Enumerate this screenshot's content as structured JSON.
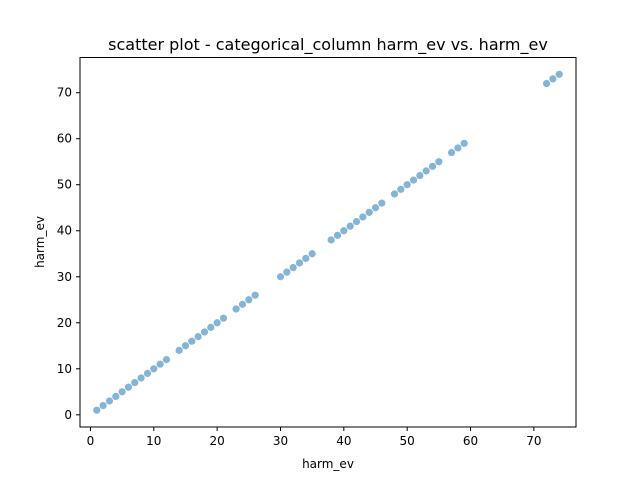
{
  "chart_data": {
    "type": "scatter",
    "title": "scatter plot - categorical_column harm_ev vs. harm_ev",
    "xlabel": "harm_ev",
    "ylabel": "harm_ev",
    "xlim": [
      -1.65,
      76.65
    ],
    "ylim": [
      -2.65,
      77.65
    ],
    "xticks": [
      0,
      10,
      20,
      30,
      40,
      50,
      60,
      70
    ],
    "yticks": [
      0,
      10,
      20,
      30,
      40,
      50,
      60,
      70
    ],
    "marker_color": "#1f77b4",
    "grid": false,
    "series": [
      {
        "name": "harm_ev",
        "x": [
          1,
          2,
          3,
          4,
          5,
          6,
          7,
          8,
          9,
          10,
          11,
          12,
          14,
          15,
          16,
          17,
          18,
          19,
          20,
          21,
          23,
          24,
          25,
          26,
          30,
          31,
          32,
          33,
          34,
          35,
          38,
          39,
          40,
          41,
          42,
          43,
          44,
          45,
          46,
          48,
          49,
          50,
          51,
          52,
          53,
          54,
          55,
          57,
          58,
          59,
          72,
          73,
          74
        ],
        "y": [
          1,
          2,
          3,
          4,
          5,
          6,
          7,
          8,
          9,
          10,
          11,
          12,
          14,
          15,
          16,
          17,
          18,
          19,
          20,
          21,
          23,
          24,
          25,
          26,
          30,
          31,
          32,
          33,
          34,
          35,
          38,
          39,
          40,
          41,
          42,
          43,
          44,
          45,
          46,
          48,
          49,
          50,
          51,
          52,
          53,
          54,
          55,
          57,
          58,
          59,
          72,
          73,
          74
        ]
      }
    ]
  }
}
